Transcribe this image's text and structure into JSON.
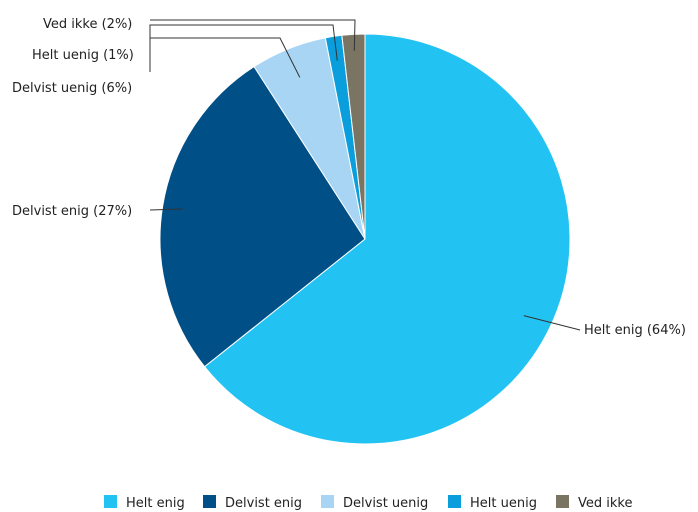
{
  "chart_data": {
    "type": "pie",
    "title": "",
    "slices": [
      {
        "name": "Helt enig",
        "label": "Helt enig (64%)",
        "value": 64.3,
        "color": "#22c2f2"
      },
      {
        "name": "Delvist enig",
        "label": "Delvist enig (27%)",
        "value": 26.6,
        "color": "#004f86"
      },
      {
        "name": "Delvist uenig",
        "label": "Delvist uenig (6%)",
        "value": 6.0,
        "color": "#a8d5f4"
      },
      {
        "name": "Helt uenig",
        "label": "Helt uenig (1%)",
        "value": 1.3,
        "color": "#0a9fdc"
      },
      {
        "name": "Ved ikke",
        "label": "Ved ikke (2%)",
        "value": 1.8,
        "color": "#7a7462"
      }
    ],
    "legend": {
      "position": "bottom",
      "items": [
        "Helt enig",
        "Delvist enig",
        "Delvist uenig",
        "Helt uenig",
        "Ved ikke"
      ]
    }
  }
}
